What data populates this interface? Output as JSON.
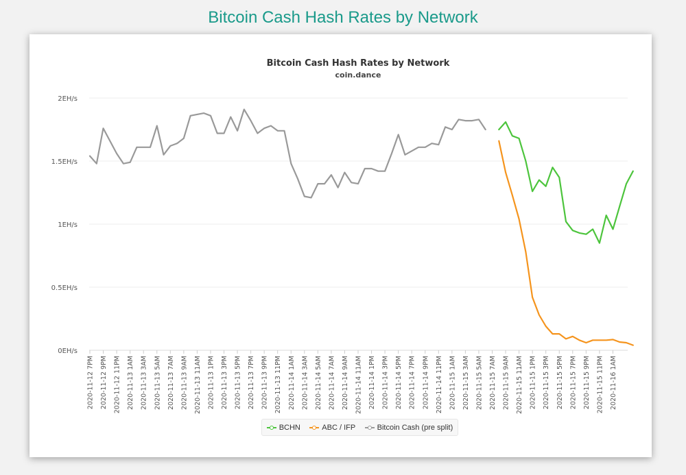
{
  "page": {
    "title": "Bitcoin Cash Hash Rates by Network"
  },
  "chart_data": {
    "type": "line",
    "title": "Bitcoin Cash Hash Rates by Network",
    "subtitle": "coin.dance",
    "xlabel": "",
    "ylabel": "",
    "unit": "EH/s",
    "ylim": [
      0,
      2
    ],
    "y_ticks": [
      {
        "value": 0,
        "label": "0EH/s"
      },
      {
        "value": 0.5,
        "label": "0.5EH/s"
      },
      {
        "value": 1,
        "label": "1EH/s"
      },
      {
        "value": 1.5,
        "label": "1.5EH/s"
      },
      {
        "value": 2,
        "label": "2EH/s"
      }
    ],
    "x_ticks": [
      "2020-11-12 7PM",
      "2020-11-12 9PM",
      "2020-11-12 11PM",
      "2020-11-13 1AM",
      "2020-11-13 3AM",
      "2020-11-13 5AM",
      "2020-11-13 7AM",
      "2020-11-13 9AM",
      "2020-11-13 11AM",
      "2020-11-13 1PM",
      "2020-11-13 3PM",
      "2020-11-13 5PM",
      "2020-11-13 7PM",
      "2020-11-13 9PM",
      "2020-11-13 11PM",
      "2020-11-14 1AM",
      "2020-11-14 3AM",
      "2020-11-14 5AM",
      "2020-11-14 7AM",
      "2020-11-14 9AM",
      "2020-11-14 11AM",
      "2020-11-14 1PM",
      "2020-11-14 3PM",
      "2020-11-14 5PM",
      "2020-11-14 7PM",
      "2020-11-14 9PM",
      "2020-11-14 11PM",
      "2020-11-15 1AM",
      "2020-11-15 3AM",
      "2020-11-15 5AM",
      "2020-11-15 7AM",
      "2020-11-15 9AM",
      "2020-11-15 11AM",
      "2020-11-15 1PM",
      "2020-11-15 3PM",
      "2020-11-15 5PM",
      "2020-11-15 7PM",
      "2020-11-15 9PM",
      "2020-11-15 11PM",
      "2020-11-16 1AM"
    ],
    "x_start": "2020-11-12 7PM",
    "x_step_hours": 1,
    "grid": true,
    "legend_position": "bottom",
    "series": [
      {
        "name": "BCHN",
        "color": "#4cc43c",
        "start_index": 61,
        "values": [
          1.75,
          1.81,
          1.7,
          1.68,
          1.5,
          1.26,
          1.35,
          1.3,
          1.45,
          1.37,
          1.02,
          0.95,
          0.93,
          0.92,
          0.96,
          0.85,
          1.07,
          0.96,
          1.14,
          1.32,
          1.42
        ]
      },
      {
        "name": "ABC / IFP",
        "color": "#f5941d",
        "start_index": 61,
        "values": [
          1.66,
          1.41,
          1.23,
          1.04,
          0.78,
          0.42,
          0.28,
          0.19,
          0.13,
          0.13,
          0.09,
          0.11,
          0.08,
          0.06,
          0.08,
          0.08,
          0.08,
          0.085,
          0.065,
          0.06,
          0.04
        ]
      },
      {
        "name": "Bitcoin Cash (pre split)",
        "color": "#999999",
        "start_index": 0,
        "values": [
          1.54,
          1.48,
          1.76,
          1.66,
          1.56,
          1.48,
          1.49,
          1.61,
          1.61,
          1.61,
          1.78,
          1.55,
          1.62,
          1.64,
          1.68,
          1.86,
          1.87,
          1.88,
          1.86,
          1.72,
          1.72,
          1.85,
          1.74,
          1.91,
          1.82,
          1.72,
          1.76,
          1.78,
          1.74,
          1.74,
          1.48,
          1.36,
          1.22,
          1.21,
          1.32,
          1.32,
          1.39,
          1.29,
          1.41,
          1.33,
          1.32,
          1.44,
          1.44,
          1.42,
          1.42,
          1.56,
          1.71,
          1.55,
          1.58,
          1.61,
          1.61,
          1.64,
          1.63,
          1.77,
          1.75,
          1.83,
          1.82,
          1.82,
          1.83,
          1.75
        ]
      }
    ]
  }
}
